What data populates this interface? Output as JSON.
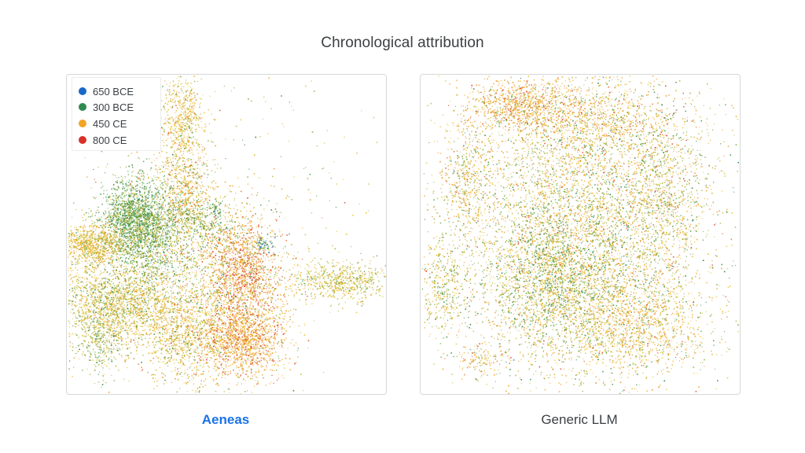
{
  "title": "Chronological attribution",
  "chart_data": {
    "type": "scatter",
    "title": "Chronological attribution",
    "xlabel": "",
    "ylabel": "",
    "grid": false,
    "legend": {
      "placement": "top-left",
      "entries": [
        {
          "label": "650 BCE",
          "color": "#1a67c9"
        },
        {
          "label": "300 BCE",
          "color": "#2f8a4e"
        },
        {
          "label": "450 CE",
          "color": "#f2a425"
        },
        {
          "label": "800 CE",
          "color": "#d7322a"
        }
      ]
    },
    "panels": [
      {
        "name": "Aeneas",
        "caption": "Aeneas",
        "description": "Embedding clusters separate by date: green (300 BCE) center-left, yellow/orange (450 CE) surrounding, red/orange (800 CE) center-right"
      },
      {
        "name": "Generic LLM",
        "caption": "Generic LLM",
        "description": "Embeddings mixed across dates with no clear chronological separation"
      }
    ]
  }
}
